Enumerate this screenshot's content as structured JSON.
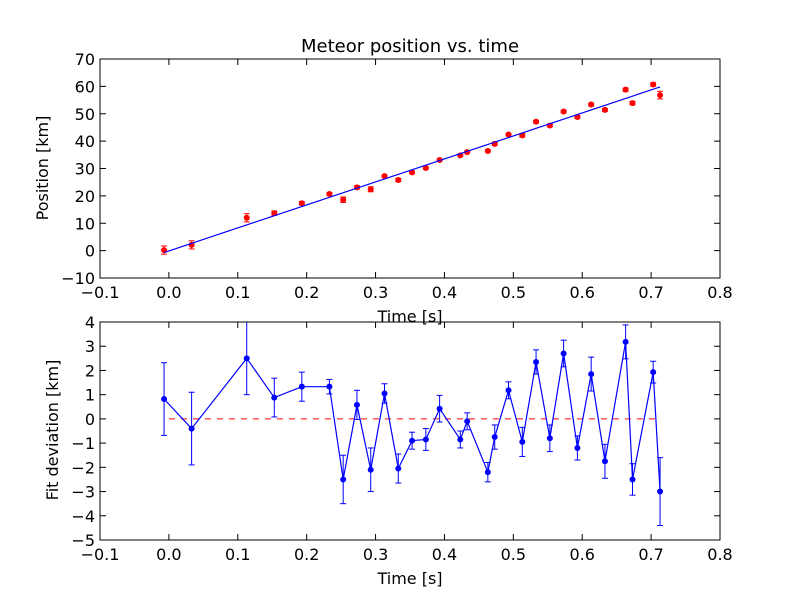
{
  "chart_data": [
    {
      "type": "scatter",
      "title": "Meteor position vs. time",
      "xlabel": "Time [s]",
      "ylabel": "Position [km]",
      "xlim": [
        -0.1,
        0.8
      ],
      "ylim": [
        -10,
        70
      ],
      "xticks": [
        -0.1,
        0.0,
        0.1,
        0.2,
        0.3,
        0.4,
        0.5,
        0.6,
        0.7,
        0.8
      ],
      "xtick_labels": [
        "−0.1",
        "0.0",
        "0.1",
        "0.2",
        "0.3",
        "0.4",
        "0.5",
        "0.6",
        "0.7",
        "0.8"
      ],
      "yticks": [
        -10,
        0,
        10,
        20,
        30,
        40,
        50,
        60,
        70
      ],
      "ytick_labels": [
        "−10",
        "0",
        "10",
        "20",
        "30",
        "40",
        "50",
        "60",
        "70"
      ],
      "grid": false,
      "series": [
        {
          "kind": "errorbar-points",
          "color": "#ff0000",
          "x": [
            -0.007,
            0.033,
            0.113,
            0.153,
            0.193,
            0.233,
            0.253,
            0.273,
            0.293,
            0.313,
            0.333,
            0.353,
            0.373,
            0.393,
            0.423,
            0.433,
            0.463,
            0.473,
            0.493,
            0.513,
            0.533,
            0.553,
            0.573,
            0.593,
            0.613,
            0.633,
            0.663,
            0.673,
            0.703,
            0.713
          ],
          "y": [
            0.2,
            2.1,
            12.0,
            13.7,
            17.3,
            20.7,
            18.6,
            23.1,
            22.4,
            27.2,
            25.8,
            28.6,
            30.2,
            33.1,
            34.8,
            36.0,
            36.4,
            39.0,
            42.4,
            42.1,
            47.1,
            45.7,
            50.8,
            48.8,
            53.4,
            51.4,
            58.8,
            53.9,
            60.7,
            56.8
          ],
          "yerr": [
            1.5,
            1.5,
            1.5,
            0.8,
            0.6,
            0.5,
            1.0,
            0.6,
            0.9,
            0.4,
            0.6,
            0.4,
            0.4,
            0.4,
            0.3,
            0.3,
            0.4,
            0.6,
            0.4,
            0.6,
            0.5,
            0.5,
            0.5,
            0.5,
            0.5,
            0.5,
            0.6,
            0.6,
            0.6,
            1.4
          ]
        },
        {
          "kind": "fit-line",
          "color": "#0000ff",
          "x": [
            -0.007,
            0.713
          ],
          "y": [
            -0.7,
            59.8
          ]
        }
      ]
    },
    {
      "type": "line",
      "title": "",
      "xlabel": "Time [s]",
      "ylabel": "Fit deviation [km]",
      "xlim": [
        -0.1,
        0.8
      ],
      "ylim": [
        -5,
        4
      ],
      "xticks": [
        -0.1,
        0.0,
        0.1,
        0.2,
        0.3,
        0.4,
        0.5,
        0.6,
        0.7,
        0.8
      ],
      "xtick_labels": [
        "−0.1",
        "0.0",
        "0.1",
        "0.2",
        "0.3",
        "0.4",
        "0.5",
        "0.6",
        "0.7",
        "0.8"
      ],
      "yticks": [
        -5,
        -4,
        -3,
        -2,
        -1,
        0,
        1,
        2,
        3,
        4
      ],
      "ytick_labels": [
        "−5",
        "−4",
        "−3",
        "−2",
        "−1",
        "0",
        "1",
        "2",
        "3",
        "4"
      ],
      "grid": false,
      "zero_line": {
        "y": 0,
        "color": "#ff0000",
        "style": "dashed"
      },
      "series": [
        {
          "kind": "errorbar-line",
          "color": "#0000ff",
          "x": [
            -0.007,
            0.033,
            0.113,
            0.153,
            0.193,
            0.233,
            0.253,
            0.273,
            0.293,
            0.313,
            0.333,
            0.353,
            0.373,
            0.393,
            0.423,
            0.433,
            0.463,
            0.473,
            0.493,
            0.513,
            0.533,
            0.553,
            0.573,
            0.593,
            0.613,
            0.633,
            0.663,
            0.673,
            0.703,
            0.713
          ],
          "y": [
            0.82,
            -0.4,
            2.5,
            0.88,
            1.33,
            1.33,
            -2.5,
            0.58,
            -2.1,
            1.05,
            -2.05,
            -0.9,
            -0.85,
            0.42,
            -0.85,
            -0.1,
            -2.2,
            -0.75,
            1.18,
            -0.95,
            2.35,
            -0.8,
            2.7,
            -1.2,
            1.85,
            -1.75,
            3.18,
            -2.5,
            1.93,
            -3.0
          ],
          "yerr": [
            1.5,
            1.5,
            1.5,
            0.8,
            0.6,
            0.3,
            1.0,
            0.6,
            0.9,
            0.4,
            0.6,
            0.35,
            0.45,
            0.55,
            0.35,
            0.35,
            0.4,
            0.5,
            0.35,
            0.6,
            0.5,
            0.55,
            0.55,
            0.5,
            0.7,
            0.7,
            0.7,
            0.65,
            0.45,
            1.4
          ]
        }
      ]
    }
  ]
}
